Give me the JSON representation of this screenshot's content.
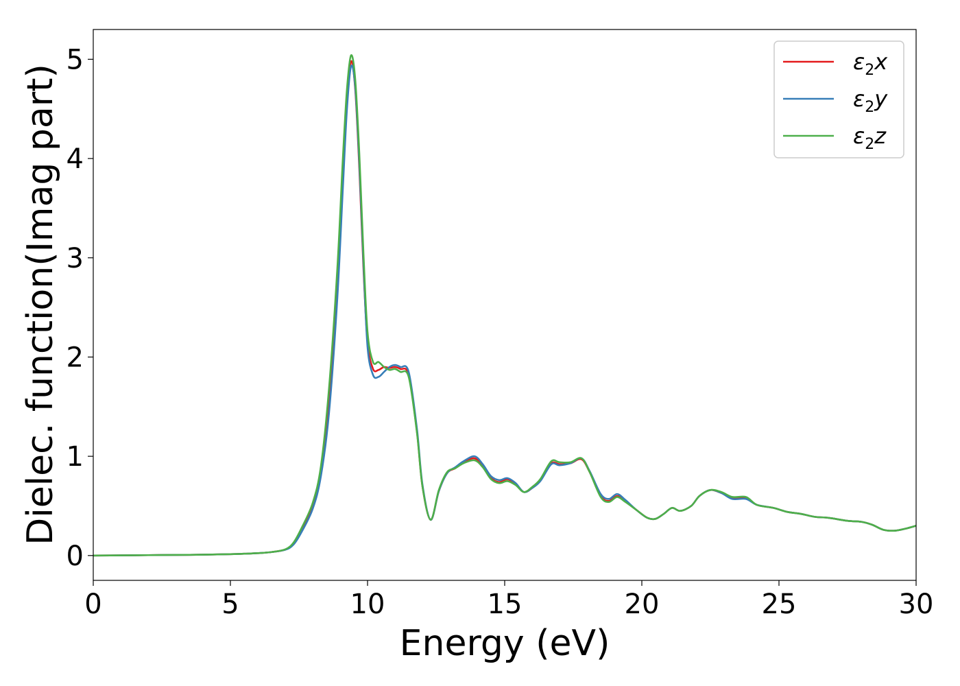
{
  "chart_data": {
    "type": "line",
    "xlabel": "Energy (eV)",
    "ylabel": "Dielec. function(Imag part)",
    "xlim": [
      0,
      30
    ],
    "ylim": [
      -0.25,
      5.3
    ],
    "xticks": [
      0,
      5,
      10,
      15,
      20,
      25,
      30
    ],
    "yticks": [
      0,
      1,
      2,
      3,
      4,
      5
    ],
    "grid": false,
    "legend_position": "top-right",
    "x": [
      0,
      1,
      2,
      3,
      4,
      5,
      5.5,
      6,
      6.5,
      7,
      7.3,
      7.6,
      8,
      8.3,
      8.6,
      8.9,
      9.1,
      9.25,
      9.4,
      9.55,
      9.7,
      9.85,
      10,
      10.2,
      10.4,
      10.6,
      10.8,
      11,
      11.2,
      11.5,
      11.8,
      12,
      12.3,
      12.6,
      12.9,
      13.2,
      13.5,
      13.9,
      14.2,
      14.5,
      14.8,
      15.1,
      15.4,
      15.7,
      16,
      16.3,
      16.7,
      17,
      17.4,
      17.8,
      18.1,
      18.5,
      18.8,
      19.1,
      19.4,
      19.8,
      20.2,
      20.5,
      20.8,
      21.1,
      21.4,
      21.8,
      22.1,
      22.5,
      22.9,
      23.3,
      23.8,
      24.2,
      24.8,
      25.3,
      25.8,
      26.3,
      26.8,
      27.5,
      28,
      28.4,
      28.8,
      29.2,
      29.6,
      30
    ],
    "series": [
      {
        "name": "x",
        "color": "#e41a1c",
        "values": [
          0,
          0.002,
          0.004,
          0.006,
          0.009,
          0.014,
          0.018,
          0.024,
          0.035,
          0.06,
          0.12,
          0.26,
          0.5,
          0.85,
          1.6,
          2.8,
          3.9,
          4.6,
          4.98,
          4.7,
          3.9,
          2.9,
          2.15,
          1.88,
          1.87,
          1.9,
          1.89,
          1.9,
          1.88,
          1.82,
          1.25,
          0.7,
          0.36,
          0.65,
          0.83,
          0.88,
          0.94,
          0.98,
          0.9,
          0.78,
          0.74,
          0.77,
          0.72,
          0.64,
          0.68,
          0.76,
          0.93,
          0.92,
          0.93,
          0.97,
          0.84,
          0.6,
          0.55,
          0.6,
          0.55,
          0.46,
          0.38,
          0.37,
          0.42,
          0.48,
          0.45,
          0.5,
          0.6,
          0.66,
          0.63,
          0.58,
          0.58,
          0.51,
          0.48,
          0.44,
          0.42,
          0.39,
          0.38,
          0.35,
          0.34,
          0.31,
          0.26,
          0.25,
          0.27,
          0.3
        ]
      },
      {
        "name": "y",
        "color": "#377eb8",
        "values": [
          0,
          0.002,
          0.004,
          0.006,
          0.009,
          0.014,
          0.018,
          0.024,
          0.035,
          0.058,
          0.11,
          0.24,
          0.47,
          0.8,
          1.45,
          2.6,
          3.7,
          4.5,
          4.93,
          4.72,
          3.95,
          2.95,
          2.1,
          1.82,
          1.8,
          1.85,
          1.9,
          1.92,
          1.9,
          1.85,
          1.28,
          0.72,
          0.36,
          0.65,
          0.83,
          0.89,
          0.95,
          1.0,
          0.92,
          0.8,
          0.76,
          0.78,
          0.73,
          0.64,
          0.68,
          0.75,
          0.92,
          0.91,
          0.93,
          0.98,
          0.85,
          0.62,
          0.57,
          0.62,
          0.56,
          0.46,
          0.38,
          0.37,
          0.42,
          0.48,
          0.45,
          0.5,
          0.6,
          0.66,
          0.63,
          0.57,
          0.57,
          0.51,
          0.48,
          0.44,
          0.42,
          0.39,
          0.38,
          0.35,
          0.34,
          0.31,
          0.26,
          0.25,
          0.27,
          0.3
        ]
      },
      {
        "name": "z",
        "color": "#4daf4a",
        "values": [
          0,
          0.002,
          0.004,
          0.006,
          0.009,
          0.014,
          0.018,
          0.024,
          0.035,
          0.062,
          0.13,
          0.28,
          0.53,
          0.9,
          1.7,
          2.9,
          4.0,
          4.7,
          5.04,
          4.8,
          4.05,
          3.05,
          2.25,
          1.95,
          1.95,
          1.9,
          1.87,
          1.88,
          1.85,
          1.8,
          1.24,
          0.7,
          0.36,
          0.66,
          0.84,
          0.88,
          0.93,
          0.96,
          0.89,
          0.77,
          0.73,
          0.75,
          0.71,
          0.64,
          0.69,
          0.77,
          0.95,
          0.94,
          0.94,
          0.98,
          0.84,
          0.59,
          0.54,
          0.59,
          0.54,
          0.46,
          0.38,
          0.37,
          0.42,
          0.48,
          0.45,
          0.5,
          0.6,
          0.66,
          0.64,
          0.59,
          0.59,
          0.51,
          0.48,
          0.44,
          0.42,
          0.39,
          0.38,
          0.35,
          0.34,
          0.31,
          0.26,
          0.25,
          0.27,
          0.3
        ]
      }
    ]
  },
  "legend": {
    "symbol": "ε",
    "subscript": "2"
  }
}
